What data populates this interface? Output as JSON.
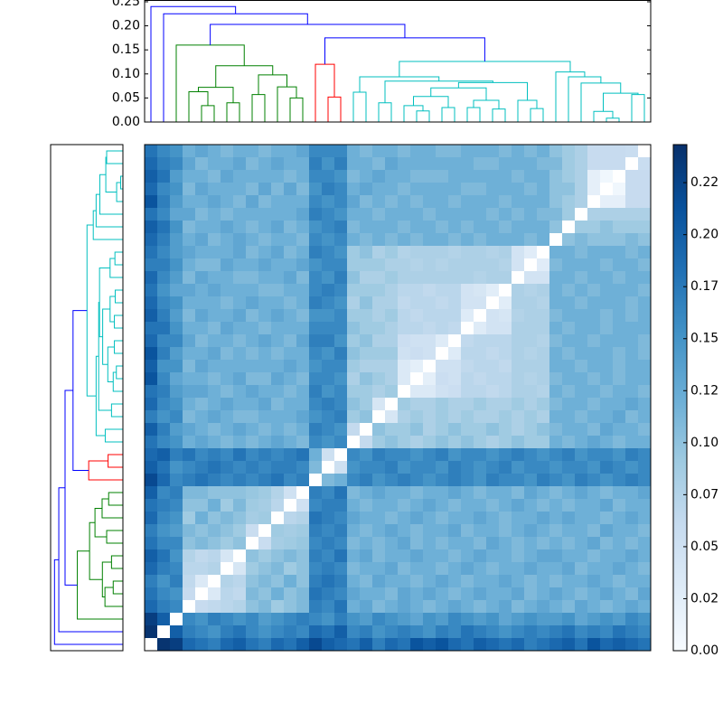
{
  "chart_data": {
    "type": "clustermap",
    "link_colors": {
      "b": "#0000ff",
      "g": "#008000",
      "r": "#ff0000",
      "c": "#00bfbf"
    },
    "linkage": [
      [
        36,
        37,
        0.008,
        "c"
      ],
      [
        21,
        22,
        0.023,
        "c"
      ],
      [
        35,
        40,
        0.022,
        "c"
      ],
      [
        20,
        41,
        0.034,
        "c"
      ],
      [
        23,
        24,
        0.03,
        "c"
      ],
      [
        43,
        44,
        0.053,
        "c"
      ],
      [
        25,
        26,
        0.03,
        "c"
      ],
      [
        27,
        28,
        0.027,
        "c"
      ],
      [
        46,
        47,
        0.045,
        "c"
      ],
      [
        45,
        48,
        0.071,
        "c"
      ],
      [
        30,
        31,
        0.028,
        "c"
      ],
      [
        29,
        50,
        0.045,
        "c"
      ],
      [
        49,
        51,
        0.082,
        "c"
      ],
      [
        18,
        19,
        0.04,
        "c"
      ],
      [
        53,
        52,
        0.085,
        "c"
      ],
      [
        16,
        17,
        0.062,
        "c"
      ],
      [
        55,
        54,
        0.094,
        "c"
      ],
      [
        38,
        39,
        0.057,
        "c"
      ],
      [
        42,
        57,
        0.06,
        "c"
      ],
      [
        34,
        58,
        0.081,
        "c"
      ],
      [
        33,
        59,
        0.094,
        "c"
      ],
      [
        32,
        60,
        0.104,
        "c"
      ],
      [
        56,
        61,
        0.126,
        "c"
      ],
      [
        14,
        15,
        0.052,
        "r"
      ],
      [
        13,
        63,
        0.12,
        "r"
      ],
      [
        4,
        5,
        0.034,
        "g"
      ],
      [
        3,
        65,
        0.063,
        "g"
      ],
      [
        6,
        7,
        0.04,
        "g"
      ],
      [
        66,
        67,
        0.072,
        "g"
      ],
      [
        8,
        9,
        0.057,
        "g"
      ],
      [
        11,
        12,
        0.05,
        "g"
      ],
      [
        10,
        70,
        0.073,
        "g"
      ],
      [
        69,
        71,
        0.098,
        "g"
      ],
      [
        68,
        72,
        0.117,
        "g"
      ],
      [
        2,
        73,
        0.16,
        "g"
      ],
      [
        64,
        62,
        0.175,
        "b"
      ],
      [
        74,
        75,
        0.203,
        "b"
      ],
      [
        1,
        76,
        0.225,
        "b"
      ],
      [
        0,
        77,
        0.24,
        "b"
      ]
    ],
    "dendrogram_ylim": [
      0,
      0.2537
    ],
    "dendrogram_yticks": [
      {
        "value": 0,
        "label": "0.00"
      },
      0.05,
      {
        "value": 0.1,
        "label": "0.10"
      },
      0.15,
      {
        "value": 0.2,
        "label": "0.20"
      },
      0.25
    ],
    "distances": [
      [
        0.24,
        0.23,
        0.19,
        0.18,
        0.17,
        0.19,
        0.2,
        0.18,
        0.17,
        0.19,
        0.18,
        0.2,
        0.22,
        0.2,
        0.19,
        0.18,
        0.2,
        0.17,
        0.19,
        0.18,
        0.21,
        0.2,
        0.21,
        0.19,
        0.18,
        0.2,
        0.19,
        0.18,
        0.19,
        0.17,
        0.18,
        0.19,
        0.2,
        0.18,
        0.21,
        0.19,
        0.2,
        0.19,
        0.18
      ],
      [
        0.2,
        0.17,
        0.16,
        0.15,
        0.17,
        0.18,
        0.16,
        0.15,
        0.16,
        0.17,
        0.16,
        0.19,
        0.18,
        0.2,
        0.16,
        0.17,
        0.15,
        0.16,
        0.17,
        0.16,
        0.15,
        0.17,
        0.16,
        0.18,
        0.17,
        0.16,
        0.15,
        0.16,
        0.17,
        0.16,
        0.17,
        0.18,
        0.16,
        0.17,
        0.16,
        0.18,
        0.17,
        0.16
      ],
      [
        0.16,
        0.15,
        0.17,
        0.16,
        0.15,
        0.16,
        0.14,
        0.15,
        0.16,
        0.17,
        0.16,
        0.15,
        0.17,
        0.15,
        0.14,
        0.16,
        0.15,
        0.14,
        0.13,
        0.15,
        0.14,
        0.16,
        0.15,
        0.14,
        0.15,
        0.13,
        0.14,
        0.15,
        0.14,
        0.14,
        0.15,
        0.13,
        0.14,
        0.15,
        0.14,
        0.16,
        0.15
      ],
      [
        0.06,
        0.065,
        0.07,
        0.075,
        0.1,
        0.11,
        0.09,
        0.1,
        0.11,
        0.17,
        0.16,
        0.18,
        0.12,
        0.13,
        0.11,
        0.12,
        0.13,
        0.12,
        0.11,
        0.12,
        0.13,
        0.12,
        0.11,
        0.12,
        0.13,
        0.11,
        0.12,
        0.13,
        0.12,
        0.11,
        0.13,
        0.12,
        0.11,
        0.12,
        0.13,
        0.12
      ],
      [
        0.034,
        0.07,
        0.065,
        0.11,
        0.1,
        0.12,
        0.1,
        0.11,
        0.18,
        0.17,
        0.16,
        0.13,
        0.12,
        0.12,
        0.11,
        0.13,
        0.12,
        0.13,
        0.12,
        0.11,
        0.12,
        0.13,
        0.12,
        0.12,
        0.13,
        0.11,
        0.12,
        0.13,
        0.12,
        0.11,
        0.12,
        0.13,
        0.12,
        0.11,
        0.13
      ],
      [
        0.075,
        0.07,
        0.1,
        0.11,
        0.1,
        0.12,
        0.1,
        0.17,
        0.18,
        0.17,
        0.12,
        0.11,
        0.13,
        0.12,
        0.12,
        0.11,
        0.12,
        0.13,
        0.12,
        0.11,
        0.12,
        0.12,
        0.13,
        0.12,
        0.11,
        0.12,
        0.11,
        0.12,
        0.12,
        0.13,
        0.12,
        0.11,
        0.12,
        0.12
      ],
      [
        0.04,
        0.09,
        0.1,
        0.11,
        0.09,
        0.1,
        0.16,
        0.17,
        0.16,
        0.11,
        0.12,
        0.12,
        0.13,
        0.11,
        0.12,
        0.12,
        0.11,
        0.12,
        0.13,
        0.12,
        0.11,
        0.12,
        0.12,
        0.13,
        0.12,
        0.12,
        0.13,
        0.11,
        0.12,
        0.12,
        0.13,
        0.12,
        0.11
      ],
      [
        0.1,
        0.09,
        0.1,
        0.11,
        0.1,
        0.17,
        0.16,
        0.18,
        0.12,
        0.13,
        0.11,
        0.12,
        0.12,
        0.13,
        0.12,
        0.12,
        0.11,
        0.12,
        0.13,
        0.12,
        0.12,
        0.11,
        0.12,
        0.13,
        0.13,
        0.12,
        0.12,
        0.11,
        0.12,
        0.12,
        0.13,
        0.12
      ],
      [
        0.057,
        0.085,
        0.09,
        0.095,
        0.16,
        0.17,
        0.16,
        0.11,
        0.12,
        0.11,
        0.12,
        0.13,
        0.11,
        0.12,
        0.11,
        0.12,
        0.12,
        0.11,
        0.13,
        0.12,
        0.11,
        0.12,
        0.11,
        0.12,
        0.11,
        0.12,
        0.13,
        0.11,
        0.12,
        0.11,
        0.12
      ],
      [
        0.09,
        0.085,
        0.09,
        0.17,
        0.16,
        0.17,
        0.12,
        0.11,
        0.12,
        0.13,
        0.12,
        0.11,
        0.12,
        0.12,
        0.13,
        0.11,
        0.12,
        0.12,
        0.11,
        0.12,
        0.13,
        0.12,
        0.11,
        0.12,
        0.12,
        0.11,
        0.13,
        0.12,
        0.12,
        0.11
      ],
      [
        0.07,
        0.075,
        0.18,
        0.17,
        0.16,
        0.13,
        0.12,
        0.12,
        0.11,
        0.12,
        0.13,
        0.12,
        0.11,
        0.12,
        0.12,
        0.13,
        0.12,
        0.11,
        0.12,
        0.12,
        0.13,
        0.12,
        0.13,
        0.12,
        0.12,
        0.11,
        0.12,
        0.13,
        0.12
      ],
      [
        0.05,
        0.16,
        0.17,
        0.17,
        0.12,
        0.11,
        0.12,
        0.12,
        0.11,
        0.12,
        0.13,
        0.12,
        0.11,
        0.12,
        0.12,
        0.11,
        0.12,
        0.13,
        0.12,
        0.11,
        0.12,
        0.11,
        0.12,
        0.12,
        0.13,
        0.11,
        0.12,
        0.12
      ],
      [
        0.17,
        0.16,
        0.18,
        0.11,
        0.12,
        0.13,
        0.12,
        0.12,
        0.11,
        0.12,
        0.12,
        0.13,
        0.12,
        0.11,
        0.12,
        0.12,
        0.11,
        0.13,
        0.12,
        0.11,
        0.12,
        0.13,
        0.12,
        0.11,
        0.12,
        0.12,
        0.13
      ],
      [
        0.11,
        0.12,
        0.16,
        0.17,
        0.15,
        0.16,
        0.17,
        0.16,
        0.15,
        0.16,
        0.17,
        0.16,
        0.15,
        0.17,
        0.16,
        0.16,
        0.15,
        0.17,
        0.16,
        0.15,
        0.17,
        0.16,
        0.15,
        0.16,
        0.17,
        0.16
      ],
      [
        0.052,
        0.15,
        0.16,
        0.16,
        0.17,
        0.15,
        0.16,
        0.16,
        0.15,
        0.17,
        0.16,
        0.15,
        0.16,
        0.17,
        0.15,
        0.16,
        0.16,
        0.15,
        0.16,
        0.16,
        0.15,
        0.17,
        0.16,
        0.15,
        0.16
      ],
      [
        0.16,
        0.15,
        0.17,
        0.16,
        0.16,
        0.15,
        0.16,
        0.17,
        0.15,
        0.16,
        0.16,
        0.15,
        0.16,
        0.17,
        0.16,
        0.15,
        0.16,
        0.17,
        0.15,
        0.16,
        0.16,
        0.15,
        0.17,
        0.16
      ],
      [
        0.062,
        0.09,
        0.1,
        0.09,
        0.08,
        0.09,
        0.1,
        0.09,
        0.1,
        0.09,
        0.08,
        0.09,
        0.1,
        0.09,
        0.09,
        0.12,
        0.11,
        0.12,
        0.13,
        0.12,
        0.11,
        0.12,
        0.12
      ],
      [
        0.1,
        0.09,
        0.09,
        0.1,
        0.08,
        0.09,
        0.1,
        0.09,
        0.09,
        0.1,
        0.09,
        0.08,
        0.09,
        0.1,
        0.11,
        0.12,
        0.12,
        0.11,
        0.13,
        0.12,
        0.12,
        0.11
      ],
      [
        0.04,
        0.08,
        0.09,
        0.08,
        0.09,
        0.08,
        0.09,
        0.08,
        0.08,
        0.09,
        0.08,
        0.09,
        0.08,
        0.12,
        0.12,
        0.11,
        0.12,
        0.12,
        0.13,
        0.11,
        0.12
      ],
      [
        0.09,
        0.08,
        0.08,
        0.09,
        0.08,
        0.08,
        0.09,
        0.08,
        0.08,
        0.09,
        0.08,
        0.09,
        0.11,
        0.12,
        0.12,
        0.11,
        0.12,
        0.12,
        0.13,
        0.12
      ],
      [
        0.034,
        0.034,
        0.05,
        0.055,
        0.07,
        0.07,
        0.065,
        0.07,
        0.08,
        0.08,
        0.075,
        0.12,
        0.11,
        0.12,
        0.12,
        0.11,
        0.12,
        0.12,
        0.11
      ],
      [
        0.023,
        0.055,
        0.05,
        0.07,
        0.065,
        0.07,
        0.07,
        0.08,
        0.075,
        0.08,
        0.11,
        0.12,
        0.12,
        0.11,
        0.12,
        0.11,
        0.12,
        0.12
      ],
      [
        0.05,
        0.05,
        0.065,
        0.07,
        0.07,
        0.065,
        0.08,
        0.08,
        0.08,
        0.12,
        0.12,
        0.11,
        0.12,
        0.12,
        0.11,
        0.12,
        0.12
      ],
      [
        0.03,
        0.07,
        0.07,
        0.065,
        0.07,
        0.08,
        0.075,
        0.08,
        0.12,
        0.11,
        0.12,
        0.12,
        0.12,
        0.11,
        0.12,
        0.11
      ],
      [
        0.065,
        0.07,
        0.07,
        0.07,
        0.08,
        0.08,
        0.075,
        0.11,
        0.12,
        0.12,
        0.11,
        0.12,
        0.12,
        0.12,
        0.11
      ],
      [
        0.03,
        0.045,
        0.045,
        0.08,
        0.08,
        0.08,
        0.12,
        0.11,
        0.12,
        0.12,
        0.11,
        0.12,
        0.12,
        0.12
      ],
      [
        0.045,
        0.04,
        0.075,
        0.08,
        0.08,
        0.11,
        0.12,
        0.12,
        0.12,
        0.11,
        0.12,
        0.11,
        0.12
      ],
      [
        0.027,
        0.08,
        0.08,
        0.075,
        0.12,
        0.12,
        0.11,
        0.12,
        0.12,
        0.12,
        0.11,
        0.12
      ],
      [
        0.08,
        0.075,
        0.08,
        0.12,
        0.11,
        0.12,
        0.11,
        0.12,
        0.12,
        0.12,
        0.11
      ],
      [
        0.045,
        0.045,
        0.12,
        0.12,
        0.11,
        0.12,
        0.12,
        0.11,
        0.12,
        0.12
      ],
      [
        0.028,
        0.11,
        0.12,
        0.12,
        0.12,
        0.11,
        0.12,
        0.12,
        0.11
      ],
      [
        0.12,
        0.12,
        0.11,
        0.12,
        0.12,
        0.12,
        0.11,
        0.12
      ],
      [
        0.1,
        0.11,
        0.1,
        0.1,
        0.1,
        0.11,
        0.1
      ],
      [
        0.09,
        0.09,
        0.1,
        0.09,
        0.09,
        0.09
      ],
      [
        0.08,
        0.08,
        0.08,
        0.08,
        0.08
      ],
      [
        0.022,
        0.022,
        0.06,
        0.06
      ],
      [
        0.008,
        0.06,
        0.06
      ],
      [
        0.06,
        0.06
      ],
      [
        0.057
      ]
    ],
    "colormap": [
      "#f7fbff",
      "#deebf7",
      "#c6dbef",
      "#9ecae1",
      "#6baed6",
      "#4292c6",
      "#2171b5",
      "#08519c",
      "#08306b"
    ],
    "clim": [
      0,
      0.2433
    ],
    "colorbar_ticks": [
      {
        "value": 0,
        "label": "0.00"
      },
      {
        "value": 0.025,
        "label": "0.02"
      },
      0.05,
      {
        "value": 0.075,
        "label": "0.07"
      },
      {
        "value": 0.1,
        "label": "0.10"
      },
      {
        "value": 0.125,
        "label": "0.12"
      },
      0.15,
      {
        "value": 0.175,
        "label": "0.17"
      },
      {
        "value": 0.2,
        "label": "0.20"
      },
      {
        "value": 0.225,
        "label": "0.22"
      }
    ]
  }
}
